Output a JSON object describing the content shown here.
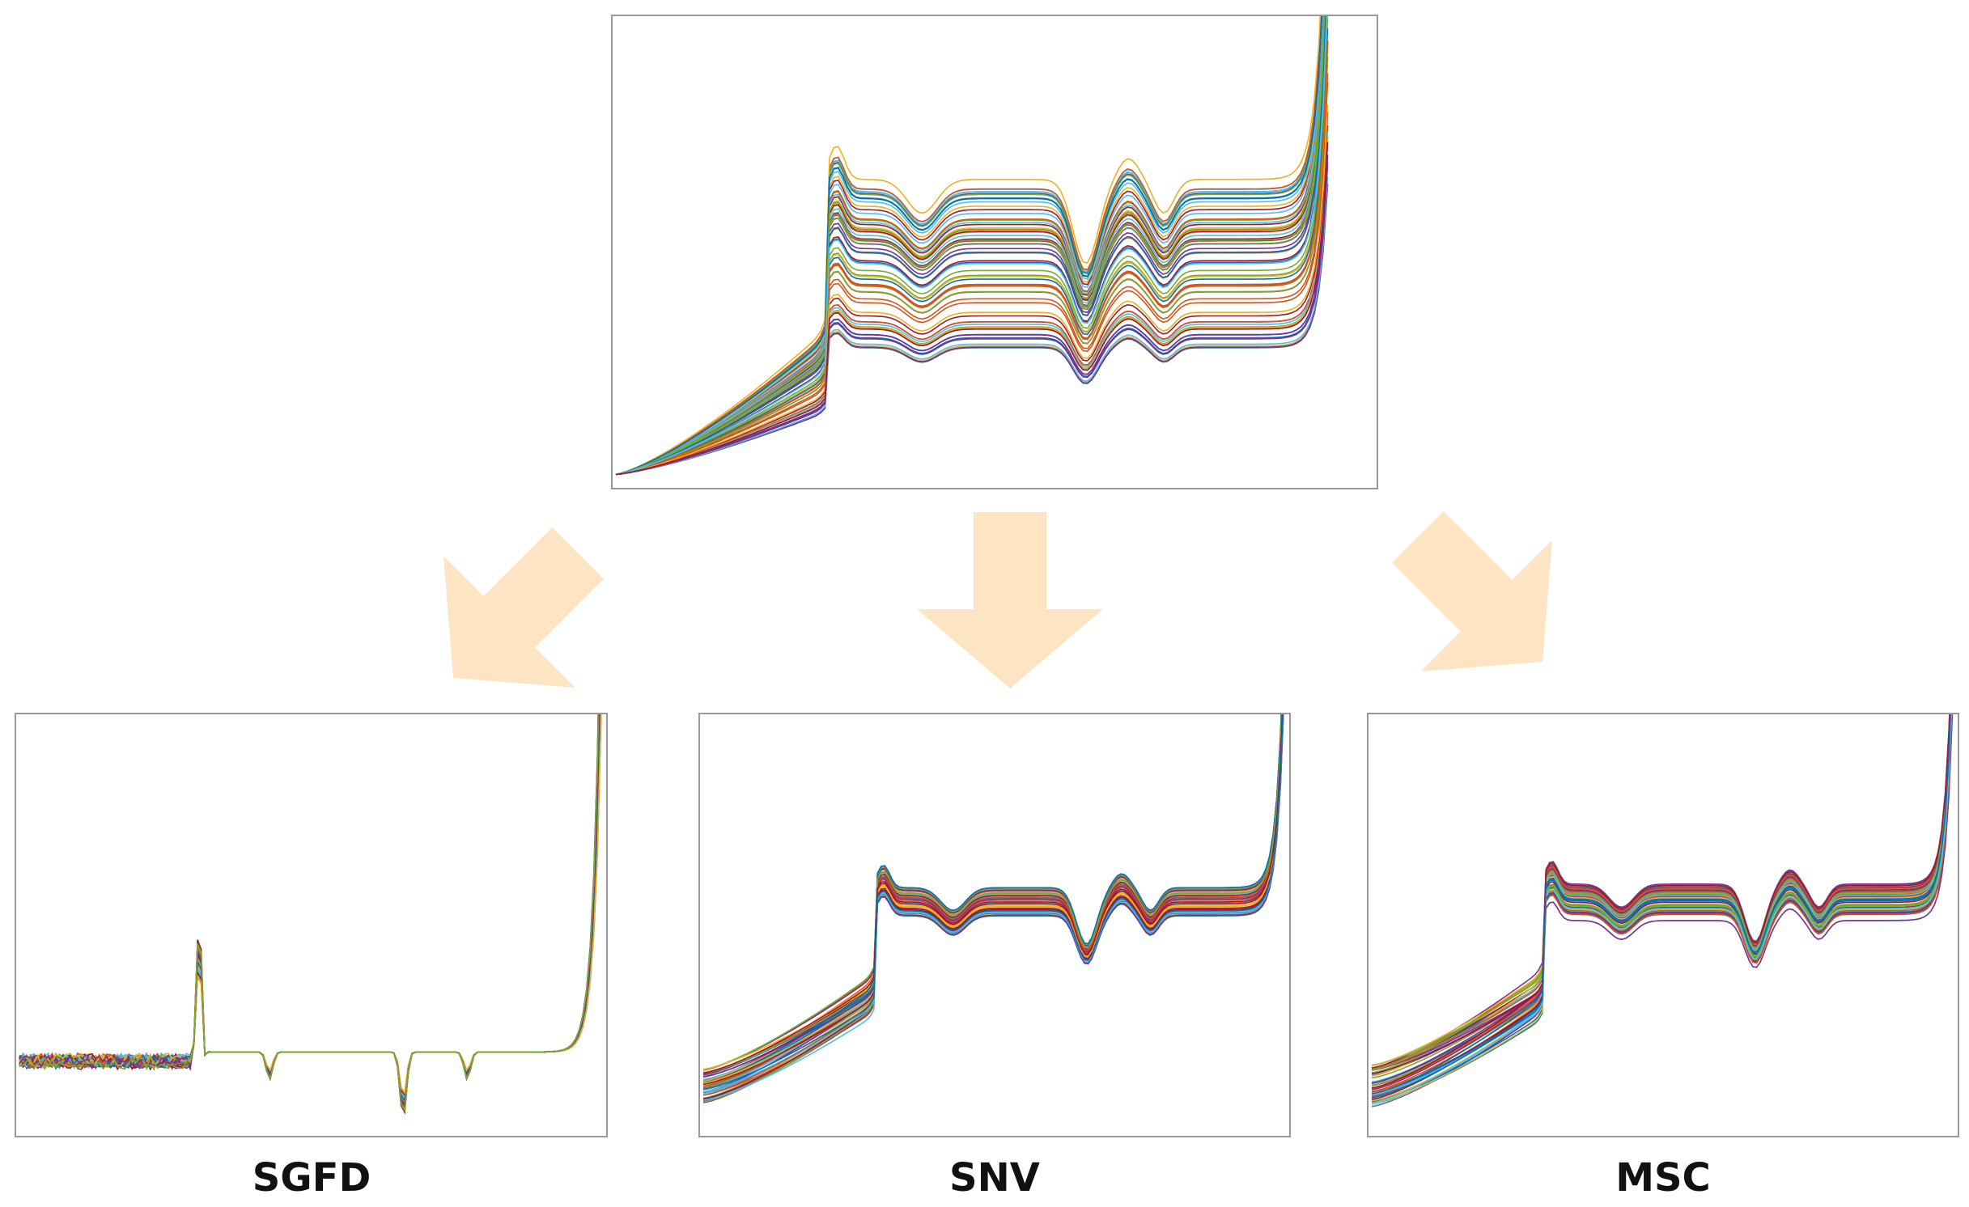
{
  "methods": {
    "sgfd": "SGFD",
    "snv": "SNV",
    "msc": "MSC"
  }
}
